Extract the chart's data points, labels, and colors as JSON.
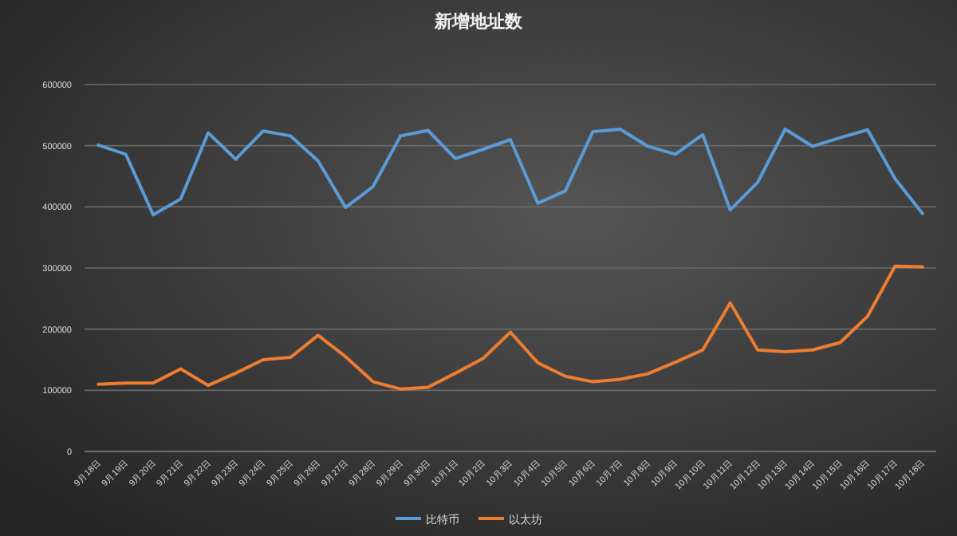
{
  "chart_data": {
    "type": "line",
    "title": "新增地址数",
    "categories": [
      "9月18日",
      "9月19日",
      "9月20日",
      "9月21日",
      "9月22日",
      "9月23日",
      "9月24日",
      "9月25日",
      "9月26日",
      "9月27日",
      "9月28日",
      "9月29日",
      "9月30日",
      "10月1日",
      "10月2日",
      "10月3日",
      "10月4日",
      "10月5日",
      "10月6日",
      "10月7日",
      "10月8日",
      "10月9日",
      "10月10日",
      "10月11日",
      "10月12日",
      "10月13日",
      "10月14日",
      "10月15日",
      "10月16日",
      "10月17日",
      "10月18日"
    ],
    "series": [
      {
        "name": "比特币",
        "color": "#5b9bd5",
        "values": [
          501000,
          486000,
          387000,
          413000,
          521000,
          478000,
          524000,
          516000,
          475000,
          399000,
          433000,
          516000,
          525000,
          479000,
          494000,
          510000,
          406000,
          426000,
          523000,
          527000,
          499000,
          486000,
          518000,
          395000,
          440000,
          527000,
          499000,
          513000,
          526000,
          446000,
          389000
        ]
      },
      {
        "name": "以太坊",
        "color": "#ed7d31",
        "values": [
          110000,
          112000,
          112000,
          135000,
          108000,
          128000,
          150000,
          154000,
          190000,
          155000,
          114000,
          102000,
          105000,
          128000,
          152000,
          195000,
          145000,
          123000,
          114000,
          118000,
          127000,
          146000,
          166000,
          243000,
          166000,
          163000,
          166000,
          178000,
          221000,
          303000,
          302000
        ]
      }
    ],
    "ylim": [
      0,
      600000
    ],
    "yticks": [
      0,
      100000,
      200000,
      300000,
      400000,
      500000,
      600000
    ],
    "grid": "y",
    "legend": "bottom",
    "marker": "none",
    "line_style": "solid"
  }
}
